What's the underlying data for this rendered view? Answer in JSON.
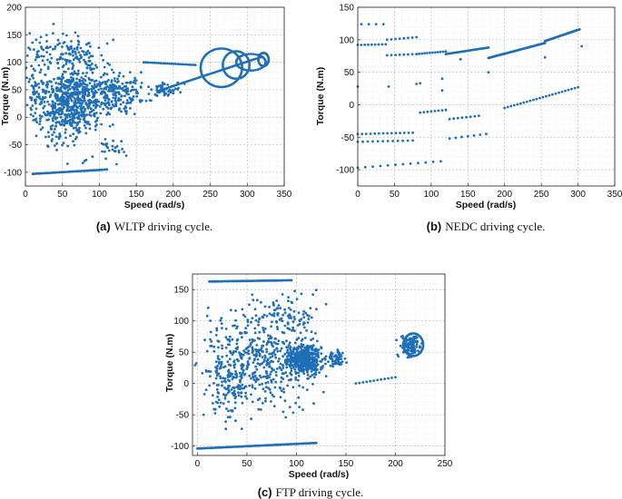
{
  "chart_data": [
    {
      "id": "wltp",
      "type": "scatter",
      "caption_tag": "(a)",
      "caption_text": "WLTP driving cycle.",
      "xlabel": "Speed (rad/s)",
      "ylabel": "Torque (N.m)",
      "xlim": [
        0,
        350
      ],
      "ylim": [
        -125,
        200
      ],
      "xticks": [
        0,
        50,
        100,
        150,
        200,
        250,
        300,
        350
      ],
      "yticks": [
        -100,
        -50,
        0,
        50,
        100,
        150,
        200
      ],
      "grid": true,
      "marker_color": "#1f6fb7",
      "density_clusters": [
        {
          "cx": 70,
          "cy": 40,
          "sx": 40,
          "sy": 45,
          "n": 520
        },
        {
          "cx": 130,
          "cy": 45,
          "sx": 30,
          "sy": 30,
          "n": 160
        },
        {
          "cx": 50,
          "cy": 5,
          "sx": 25,
          "sy": 55,
          "n": 170
        },
        {
          "cx": 60,
          "cy": 120,
          "sx": 45,
          "sy": 30,
          "n": 130
        },
        {
          "cx": 190,
          "cy": 50,
          "sx": 15,
          "sy": 12,
          "n": 50
        },
        {
          "cx": 15,
          "cy": 40,
          "sx": 10,
          "sy": 60,
          "n": 70
        },
        {
          "cx": 110,
          "cy": -60,
          "sx": 25,
          "sy": 18,
          "n": 30
        }
      ],
      "line_segments": [
        {
          "x": [
            10,
            110
          ],
          "y": [
            -103,
            -95
          ],
          "n": 45
        },
        {
          "x": [
            160,
            230
          ],
          "y": [
            100,
            95
          ],
          "n": 25
        },
        {
          "x": [
            180,
            320
          ],
          "y": [
            48,
            110
          ],
          "n": 60
        }
      ],
      "loops": [
        {
          "cx": 265,
          "cy": 90,
          "rx": 28,
          "ry": 35,
          "n": 70
        },
        {
          "cx": 285,
          "cy": 95,
          "rx": 18,
          "ry": 25,
          "n": 45
        },
        {
          "cx": 305,
          "cy": 100,
          "rx": 20,
          "ry": 15,
          "n": 40
        },
        {
          "cx": 322,
          "cy": 105,
          "rx": 7,
          "ry": 12,
          "n": 30
        }
      ]
    },
    {
      "id": "nedc",
      "type": "scatter",
      "caption_tag": "(b)",
      "caption_text": "NEDC driving cycle.",
      "xlabel": "Speed (rad/s)",
      "ylabel": "Torque (N.m)",
      "xlim": [
        0,
        350
      ],
      "ylim": [
        -125,
        150
      ],
      "xticks": [
        0,
        50,
        100,
        150,
        200,
        250,
        300,
        350
      ],
      "yticks": [
        -100,
        -50,
        0,
        50,
        100,
        150
      ],
      "grid": true,
      "marker_color": "#1f6fb7",
      "line_segments": [
        {
          "x": [
            5,
            35
          ],
          "y": [
            124,
            124
          ],
          "n": 4
        },
        {
          "x": [
            0,
            38
          ],
          "y": [
            92,
            93
          ],
          "n": 9
        },
        {
          "x": [
            40,
            80
          ],
          "y": [
            100,
            104
          ],
          "n": 8
        },
        {
          "x": [
            40,
            80
          ],
          "y": [
            76,
            78
          ],
          "n": 8
        },
        {
          "x": [
            80,
            120
          ],
          "y": [
            78,
            82
          ],
          "n": 12
        },
        {
          "x": [
            120,
            178
          ],
          "y": [
            78,
            88
          ],
          "n": 30
        },
        {
          "x": [
            178,
            255
          ],
          "y": [
            72,
            95
          ],
          "n": 55
        },
        {
          "x": [
            255,
            302
          ],
          "y": [
            98,
            116
          ],
          "n": 40
        },
        {
          "x": [
            0,
            75
          ],
          "y": [
            -45,
            -43
          ],
          "n": 14
        },
        {
          "x": [
            0,
            75
          ],
          "y": [
            -57,
            -55
          ],
          "n": 12
        },
        {
          "x": [
            0,
            113
          ],
          "y": [
            -97,
            -87
          ],
          "n": 12
        },
        {
          "x": [
            85,
            120
          ],
          "y": [
            -12,
            -8
          ],
          "n": 8
        },
        {
          "x": [
            125,
            165
          ],
          "y": [
            -22,
            -17
          ],
          "n": 8
        },
        {
          "x": [
            125,
            175
          ],
          "y": [
            -52,
            -45
          ],
          "n": 7
        },
        {
          "x": [
            200,
            300
          ],
          "y": [
            -5,
            27
          ],
          "n": 24
        }
      ],
      "points": [
        {
          "x": 0,
          "y": 28
        },
        {
          "x": 42,
          "y": 28
        },
        {
          "x": 80,
          "y": 32
        },
        {
          "x": 85,
          "y": 33
        },
        {
          "x": 115,
          "y": 40
        },
        {
          "x": 140,
          "y": 70
        },
        {
          "x": 178,
          "y": 50
        },
        {
          "x": 255,
          "y": 73
        },
        {
          "x": 305,
          "y": 90
        },
        {
          "x": 115,
          "y": 22
        }
      ]
    },
    {
      "id": "ftp",
      "type": "scatter",
      "caption_tag": "(c)",
      "caption_text": "FTP driving cycle.",
      "xlabel": "Speed (rad/s)",
      "ylabel": "Torque (N.m)",
      "xlim": [
        -5,
        250
      ],
      "ylim": [
        -115,
        175
      ],
      "xticks": [
        0,
        50,
        100,
        150,
        200,
        250
      ],
      "yticks": [
        -100,
        -50,
        0,
        50,
        100,
        150
      ],
      "grid": true,
      "marker_color": "#1f6fb7",
      "density_clusters": [
        {
          "cx": 108,
          "cy": 38,
          "sx": 14,
          "sy": 18,
          "n": 420
        },
        {
          "cx": 75,
          "cy": 30,
          "sx": 40,
          "sy": 60,
          "n": 380
        },
        {
          "cx": 30,
          "cy": 20,
          "sx": 22,
          "sy": 65,
          "n": 200
        },
        {
          "cx": 140,
          "cy": 40,
          "sx": 8,
          "sy": 10,
          "n": 60
        },
        {
          "cx": 215,
          "cy": 60,
          "sx": 8,
          "sy": 14,
          "n": 120
        },
        {
          "cx": 85,
          "cy": 110,
          "sx": 35,
          "sy": 30,
          "n": 90
        }
      ],
      "line_segments": [
        {
          "x": [
            12,
            95
          ],
          "y": [
            163,
            165
          ],
          "n": 60
        },
        {
          "x": [
            0,
            120
          ],
          "y": [
            -104,
            -95
          ],
          "n": 80
        },
        {
          "x": [
            160,
            200
          ],
          "y": [
            0,
            10
          ],
          "n": 12
        }
      ],
      "loops": [
        {
          "cx": 218,
          "cy": 62,
          "rx": 10,
          "ry": 18,
          "n": 40
        }
      ]
    }
  ]
}
